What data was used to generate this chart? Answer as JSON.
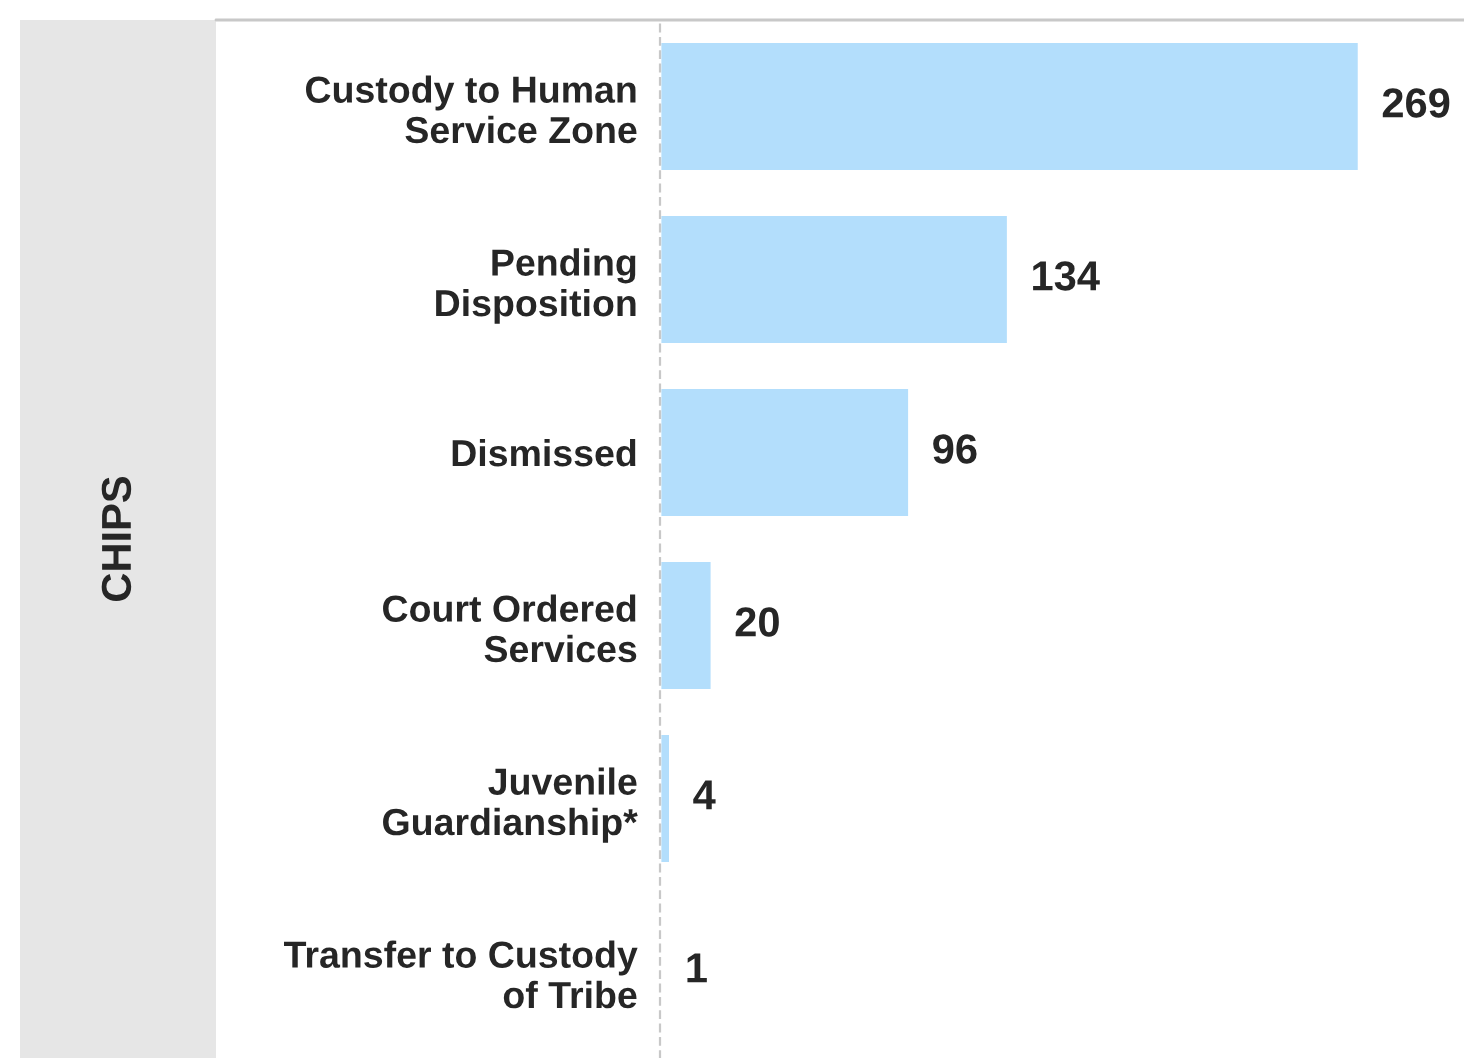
{
  "chart_data": {
    "type": "bar",
    "orientation": "horizontal",
    "ylabel": "CHIPS",
    "categories": [
      "Custody to Human\nService Zone",
      "Pending\nDisposition",
      "Dismissed",
      "Court Ordered\nServices",
      "Juvenile\nGuardianship*",
      "Transfer to Custody\nof Tribe"
    ],
    "values": [
      269,
      134,
      96,
      20,
      4,
      1
    ],
    "color": "#b3defc",
    "data_labels": true,
    "grid": false,
    "legend": false
  }
}
